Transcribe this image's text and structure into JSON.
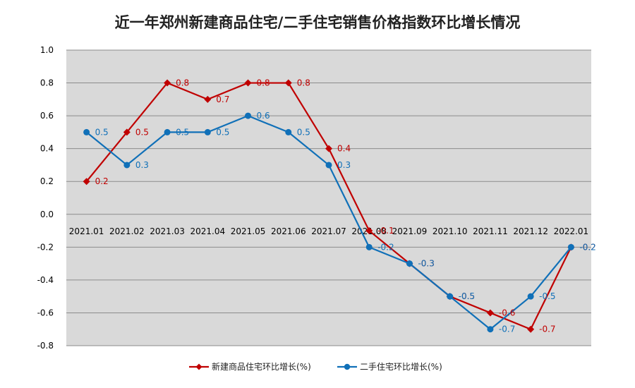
{
  "chart_data": {
    "type": "line",
    "title": "近一年郑州新建商品住宅/二手住宅销售价格指数环比增长情况",
    "xlabel": "",
    "ylabel": "",
    "categories": [
      "2021.01",
      "2021.02",
      "2021.03",
      "2021.04",
      "2021.05",
      "2021.06",
      "2021.07",
      "2021.08",
      "2021.09",
      "2021.10",
      "2021.11",
      "2021.12",
      "2022.01"
    ],
    "ylim": [
      -0.8,
      1.0
    ],
    "yticks": [
      "1.0",
      "0.8",
      "0.6",
      "0.4",
      "0.2",
      "0.0",
      "-0.2",
      "-0.4",
      "-0.6",
      "-0.8"
    ],
    "grid": true,
    "legend_position": "bottom",
    "series": [
      {
        "name": "新建商品住宅环比增长(%)",
        "color": "#c00000",
        "marker": "diamond",
        "values": [
          0.2,
          0.5,
          0.8,
          0.7,
          0.8,
          0.8,
          0.4,
          -0.1,
          -0.3,
          -0.5,
          -0.6,
          -0.7,
          -0.2
        ],
        "labels": [
          "0.2",
          "0.5",
          "0.8",
          "0.7",
          "0.8",
          "0.8",
          "0.4",
          "-0.1",
          "-0.3",
          "-0.5",
          "-0.6",
          "-0.7",
          "-0.2"
        ]
      },
      {
        "name": "二手住宅环比增长(%)",
        "color": "#1070b8",
        "marker": "circle",
        "values": [
          0.5,
          0.3,
          0.5,
          0.5,
          0.6,
          0.5,
          0.3,
          -0.2,
          -0.3,
          -0.5,
          -0.7,
          -0.5,
          -0.2
        ],
        "labels": [
          "0.5",
          "0.3",
          "0.5",
          "0.5",
          "0.6",
          "0.5",
          "0.3",
          "-0.2",
          "-0.3",
          "-0.5",
          "-0.7",
          "-0.5",
          "-0.2"
        ]
      }
    ]
  }
}
